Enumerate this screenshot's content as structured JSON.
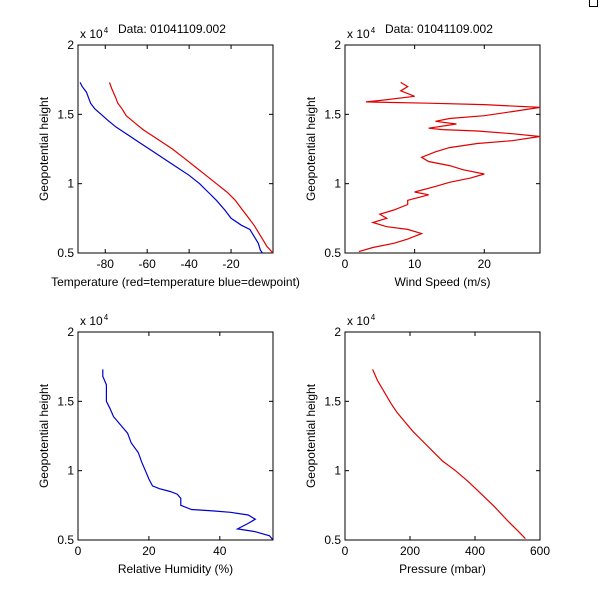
{
  "colors": {
    "red": "#e00000",
    "blue": "#0000c8"
  },
  "chart_data": [
    {
      "type": "line",
      "title": "Data: 01041109.002",
      "xlabel": "Temperature (red=temperature blue=dewpoint)",
      "ylabel": "Geopotential height",
      "y_exponent_label": "x 10",
      "y_exponent_power": "4",
      "xlim": [
        -93,
        0
      ],
      "ylim": [
        0.5,
        2
      ],
      "xticks": [
        -80,
        -60,
        -40,
        -20
      ],
      "xtick_labels": [
        "-80",
        "-60",
        "-40",
        "-20"
      ],
      "yticks": [
        0.5,
        1,
        1.5,
        2
      ],
      "ytick_labels": [
        "0.5",
        "1",
        "1.5",
        "2"
      ],
      "series": [
        {
          "color": "red",
          "points": [
            [
              -78,
              1.73
            ],
            [
              -77,
              1.69
            ],
            [
              -75,
              1.62
            ],
            [
              -74,
              1.58
            ],
            [
              -72,
              1.54
            ],
            [
              -70,
              1.49
            ],
            [
              -66,
              1.44
            ],
            [
              -62,
              1.39
            ],
            [
              -55,
              1.32
            ],
            [
              -48,
              1.25
            ],
            [
              -42,
              1.18
            ],
            [
              -37,
              1.12
            ],
            [
              -32,
              1.06
            ],
            [
              -27,
              1.0
            ],
            [
              -22,
              0.94
            ],
            [
              -18,
              0.88
            ],
            [
              -15,
              0.82
            ],
            [
              -12,
              0.76
            ],
            [
              -9,
              0.7
            ],
            [
              -7,
              0.65
            ],
            [
              -5,
              0.6
            ],
            [
              -3,
              0.55
            ],
            [
              0,
              0.5
            ]
          ]
        },
        {
          "color": "blue",
          "points": [
            [
              -92,
              1.73
            ],
            [
              -91,
              1.7
            ],
            [
              -89,
              1.66
            ],
            [
              -88,
              1.62
            ],
            [
              -87,
              1.58
            ],
            [
              -85,
              1.54
            ],
            [
              -82,
              1.5
            ],
            [
              -79,
              1.46
            ],
            [
              -75,
              1.41
            ],
            [
              -70,
              1.36
            ],
            [
              -64,
              1.3
            ],
            [
              -58,
              1.24
            ],
            [
              -52,
              1.18
            ],
            [
              -46,
              1.12
            ],
            [
              -40,
              1.06
            ],
            [
              -35,
              1.0
            ],
            [
              -31,
              0.94
            ],
            [
              -27,
              0.88
            ],
            [
              -23,
              0.81
            ],
            [
              -20,
              0.75
            ],
            [
              -15,
              0.7
            ],
            [
              -11,
              0.67
            ],
            [
              -9,
              0.62
            ],
            [
              -7,
              0.57
            ],
            [
              -6,
              0.52
            ],
            [
              -5,
              0.5
            ]
          ]
        }
      ]
    },
    {
      "type": "line",
      "title": "Data: 01041109.002",
      "xlabel": "Wind Speed (m/s)",
      "ylabel": "Geopotential height",
      "y_exponent_label": "x 10",
      "y_exponent_power": "4",
      "xlim": [
        0,
        28
      ],
      "ylim": [
        0.5,
        2
      ],
      "xticks": [
        0,
        10,
        20
      ],
      "xtick_labels": [
        "0",
        "10",
        "20"
      ],
      "yticks": [
        0.5,
        1,
        1.5,
        2
      ],
      "ytick_labels": [
        "0.5",
        "1",
        "1.5",
        "2"
      ],
      "series": [
        {
          "color": "red",
          "points": [
            [
              8,
              1.73
            ],
            [
              9,
              1.7
            ],
            [
              8,
              1.67
            ],
            [
              10,
              1.63
            ],
            [
              5,
              1.6
            ],
            [
              3,
              1.59
            ],
            [
              12,
              1.58
            ],
            [
              20,
              1.57
            ],
            [
              28,
              1.55
            ],
            [
              24,
              1.52
            ],
            [
              20,
              1.49
            ],
            [
              15,
              1.47
            ],
            [
              13,
              1.45
            ],
            [
              16,
              1.43
            ],
            [
              12,
              1.4
            ],
            [
              14,
              1.39
            ],
            [
              19,
              1.38
            ],
            [
              24,
              1.36
            ],
            [
              28,
              1.34
            ],
            [
              24,
              1.31
            ],
            [
              19,
              1.29
            ],
            [
              15,
              1.26
            ],
            [
              13,
              1.23
            ],
            [
              11,
              1.19
            ],
            [
              12,
              1.16
            ],
            [
              15,
              1.13
            ],
            [
              17,
              1.1
            ],
            [
              20,
              1.07
            ],
            [
              18,
              1.04
            ],
            [
              15,
              1.01
            ],
            [
              13,
              0.98
            ],
            [
              10,
              0.94
            ],
            [
              12,
              0.92
            ],
            [
              9,
              0.88
            ],
            [
              9,
              0.85
            ],
            [
              7,
              0.81
            ],
            [
              5,
              0.78
            ],
            [
              6,
              0.75
            ],
            [
              4,
              0.72
            ],
            [
              6,
              0.69
            ],
            [
              9,
              0.67
            ],
            [
              11,
              0.64
            ],
            [
              9,
              0.6
            ],
            [
              7,
              0.57
            ],
            [
              4,
              0.54
            ],
            [
              2,
              0.51
            ]
          ]
        }
      ]
    },
    {
      "type": "line",
      "title": "",
      "xlabel": "Relative Humidity (%)",
      "ylabel": "Geopotential height",
      "y_exponent_label": "x 10",
      "y_exponent_power": "4",
      "xlim": [
        0,
        55
      ],
      "ylim": [
        0.5,
        2
      ],
      "xticks": [
        0,
        20,
        40
      ],
      "xtick_labels": [
        "0",
        "20",
        "40"
      ],
      "yticks": [
        0.5,
        1,
        1.5,
        2
      ],
      "ytick_labels": [
        "0.5",
        "1",
        "1.5",
        "2"
      ],
      "series": [
        {
          "color": "blue",
          "points": [
            [
              7,
              1.73
            ],
            [
              7,
              1.68
            ],
            [
              8,
              1.62
            ],
            [
              8,
              1.56
            ],
            [
              8,
              1.5
            ],
            [
              9,
              1.45
            ],
            [
              10,
              1.39
            ],
            [
              12,
              1.33
            ],
            [
              14,
              1.27
            ],
            [
              15,
              1.2
            ],
            [
              17,
              1.13
            ],
            [
              18,
              1.06
            ],
            [
              19,
              1.0
            ],
            [
              20,
              0.94
            ],
            [
              21,
              0.89
            ],
            [
              23,
              0.87
            ],
            [
              26,
              0.85
            ],
            [
              28,
              0.83
            ],
            [
              29,
              0.8
            ],
            [
              29,
              0.75
            ],
            [
              32,
              0.72
            ],
            [
              38,
              0.71
            ],
            [
              43,
              0.7
            ],
            [
              48,
              0.68
            ],
            [
              50,
              0.65
            ],
            [
              48,
              0.62
            ],
            [
              45,
              0.58
            ],
            [
              50,
              0.56
            ],
            [
              54,
              0.53
            ],
            [
              55,
              0.5
            ]
          ]
        }
      ]
    },
    {
      "type": "line",
      "title": "",
      "xlabel": "Pressure (mbar)",
      "ylabel": "Geopotential height",
      "y_exponent_label": "x 10",
      "y_exponent_power": "4",
      "xlim": [
        0,
        600
      ],
      "ylim": [
        0.5,
        2
      ],
      "xticks": [
        0,
        200,
        400,
        600
      ],
      "xtick_labels": [
        "0",
        "200",
        "400",
        "600"
      ],
      "yticks": [
        0.5,
        1,
        1.5,
        2
      ],
      "ytick_labels": [
        "0.5",
        "1",
        "1.5",
        "2"
      ],
      "series": [
        {
          "color": "red",
          "points": [
            [
              85,
              1.73
            ],
            [
              100,
              1.65
            ],
            [
              120,
              1.57
            ],
            [
              140,
              1.49
            ],
            [
              160,
              1.42
            ],
            [
              185,
              1.35
            ],
            [
              210,
              1.28
            ],
            [
              240,
              1.21
            ],
            [
              270,
              1.14
            ],
            [
              300,
              1.07
            ],
            [
              340,
              1.0
            ],
            [
              380,
              0.92
            ],
            [
              420,
              0.83
            ],
            [
              460,
              0.74
            ],
            [
              500,
              0.64
            ],
            [
              530,
              0.57
            ],
            [
              555,
              0.51
            ]
          ]
        }
      ]
    }
  ]
}
